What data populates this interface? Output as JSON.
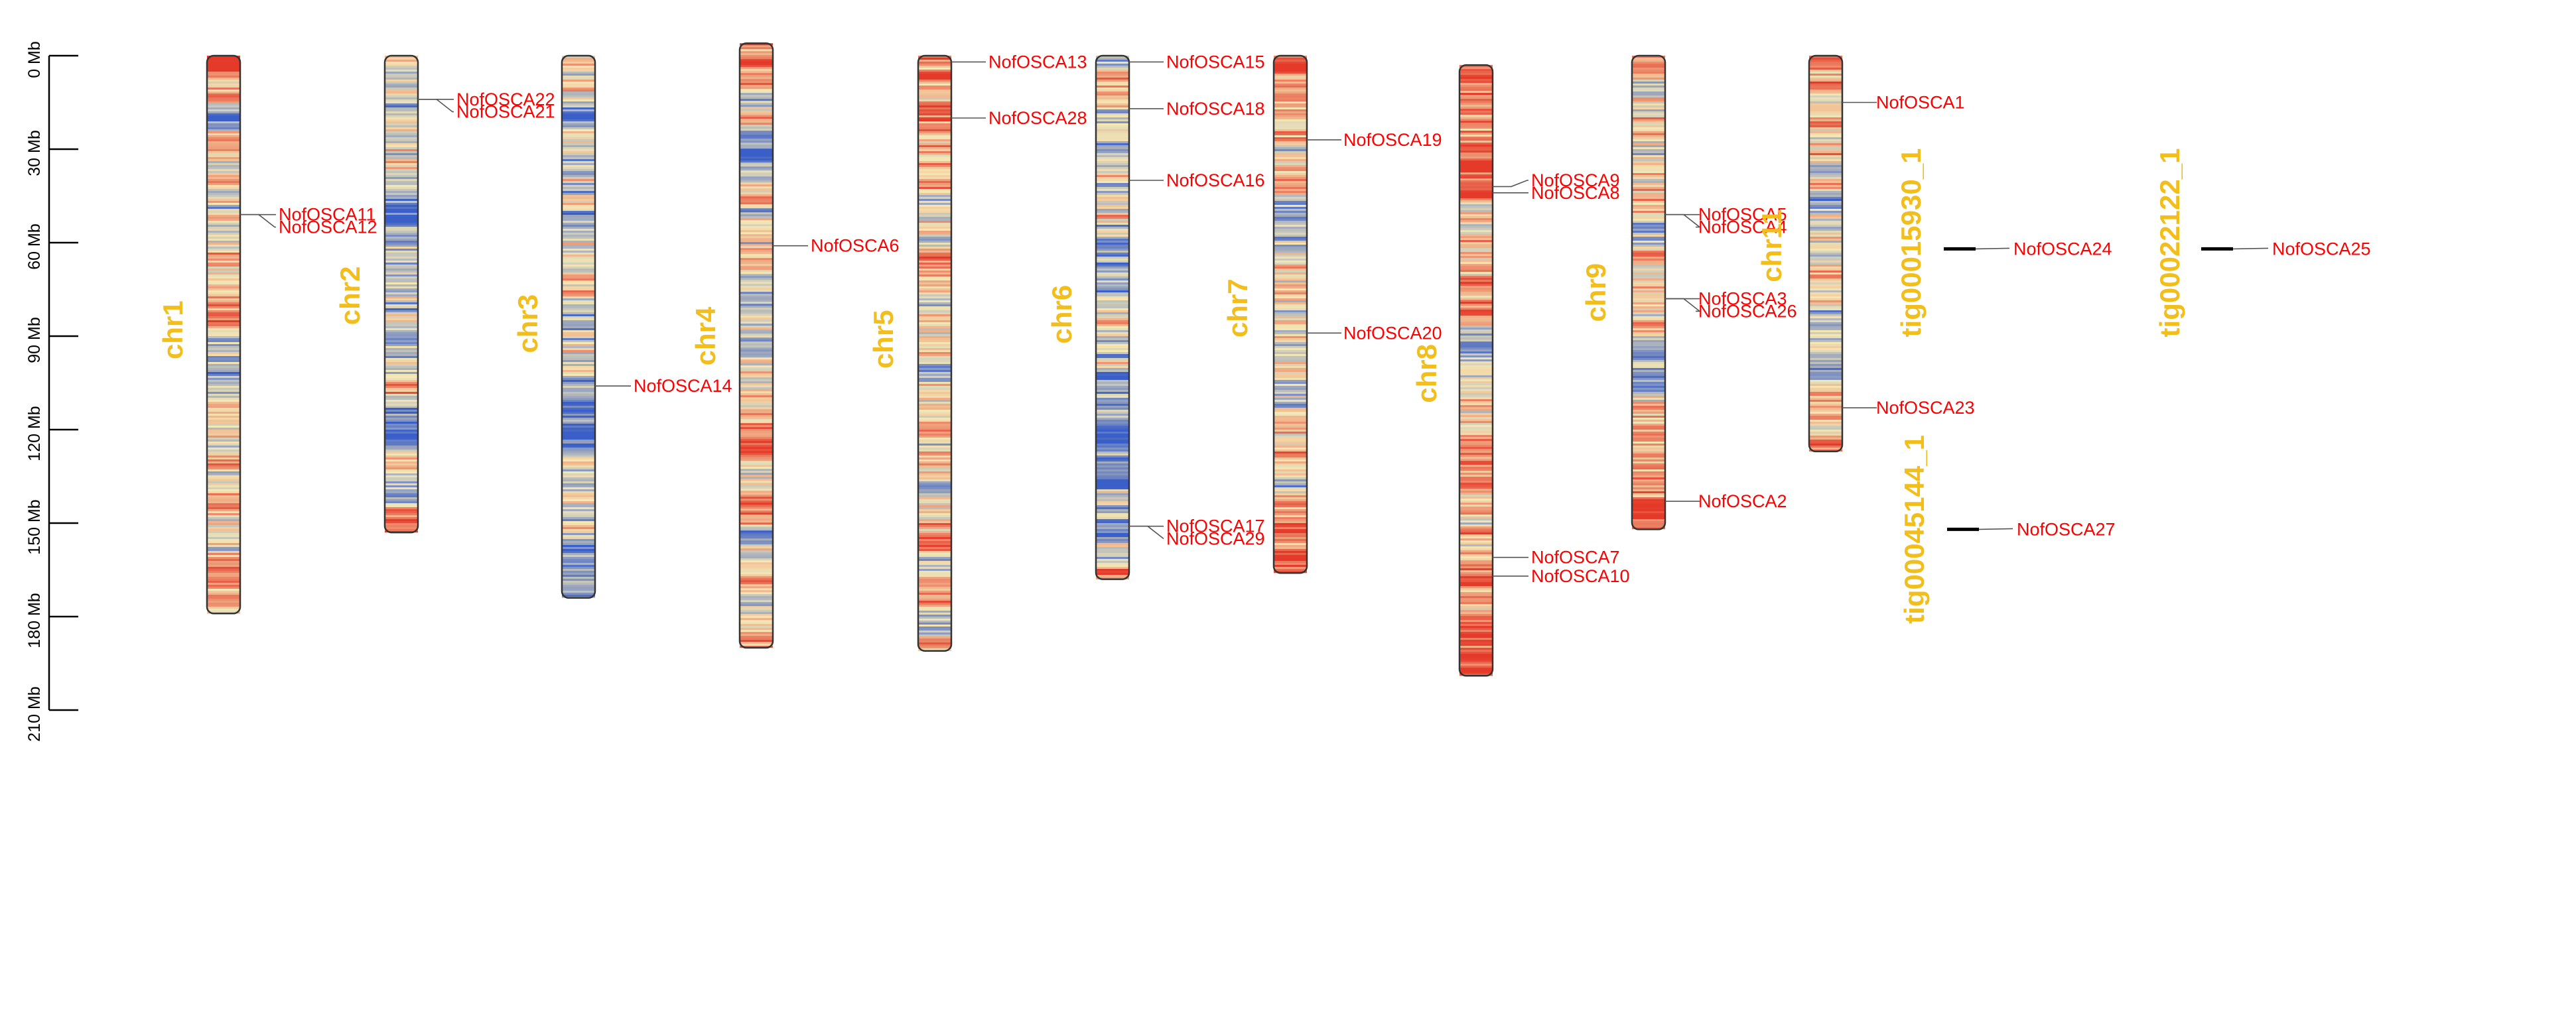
{
  "figure": {
    "units": "Mb",
    "axis": {
      "ticks": [
        {
          "value": 0,
          "label": "0 Mb"
        },
        {
          "value": 30,
          "label": "30 Mb"
        },
        {
          "value": 60,
          "label": "60 Mb"
        },
        {
          "value": 90,
          "label": "90 Mb"
        },
        {
          "value": 120,
          "label": "120 Mb"
        },
        {
          "value": 150,
          "label": "150 Mb"
        },
        {
          "value": 180,
          "label": "180 Mb"
        },
        {
          "value": 210,
          "label": "210 Mb"
        }
      ],
      "max": 210
    },
    "colors": {
      "gene_label": "#ff0000",
      "chromosome_label": "#f2be1c",
      "density_low": "#3a5fc8",
      "density_mid": "#f5e8b5",
      "density_high": "#e53a2a",
      "outline": "#333333",
      "scaffold": "#000000",
      "leader_line": "#555555"
    },
    "chromosomes": [
      {
        "name": "chr1",
        "start": 0,
        "length": 179,
        "density": "mixed",
        "genes": [
          {
            "name": "NofOSCA11",
            "pos": 51,
            "label_pos": 51
          },
          {
            "name": "NofOSCA12",
            "pos": 51,
            "label_pos": 55
          }
        ]
      },
      {
        "name": "chr2",
        "start": 0,
        "length": 153,
        "density": "blue",
        "genes": [
          {
            "name": "NofOSCA22",
            "pos": 14,
            "label_pos": 14
          },
          {
            "name": "NofOSCA21",
            "pos": 14,
            "label_pos": 18
          }
        ]
      },
      {
        "name": "chr3",
        "start": 0,
        "length": 174,
        "density": "blue",
        "genes": [
          {
            "name": "NofOSCA14",
            "pos": 106,
            "label_pos": 106
          }
        ]
      },
      {
        "name": "chr4",
        "start": -4,
        "length": 194,
        "density": "mixed",
        "genes": [
          {
            "name": "NofOSCA6",
            "pos": 61,
            "label_pos": 61
          }
        ]
      },
      {
        "name": "chr5",
        "start": 0,
        "length": 191,
        "density": "mixed",
        "genes": [
          {
            "name": "NofOSCA13",
            "pos": 2,
            "label_pos": 2
          },
          {
            "name": "NofOSCA28",
            "pos": 20,
            "label_pos": 20
          }
        ]
      },
      {
        "name": "chr6",
        "start": 0,
        "length": 168,
        "density": "blue",
        "genes": [
          {
            "name": "NofOSCA15",
            "pos": 2,
            "label_pos": 2
          },
          {
            "name": "NofOSCA18",
            "pos": 17,
            "label_pos": 17
          },
          {
            "name": "NofOSCA16",
            "pos": 40,
            "label_pos": 40
          },
          {
            "name": "NofOSCA17",
            "pos": 151,
            "label_pos": 151
          },
          {
            "name": "NofOSCA29",
            "pos": 151,
            "label_pos": 155
          }
        ]
      },
      {
        "name": "chr7",
        "start": 0,
        "length": 166,
        "density": "mixed",
        "genes": [
          {
            "name": "NofOSCA19",
            "pos": 27,
            "label_pos": 27
          },
          {
            "name": "NofOSCA20",
            "pos": 89,
            "label_pos": 89
          }
        ]
      },
      {
        "name": "chr8",
        "start": 3,
        "length": 196,
        "density": "red",
        "genes": [
          {
            "name": "NofOSCA9",
            "pos": 42,
            "label_pos": 40
          },
          {
            "name": "NofOSCA8",
            "pos": 44,
            "label_pos": 44
          },
          {
            "name": "NofOSCA7",
            "pos": 161,
            "label_pos": 161
          },
          {
            "name": "NofOSCA10",
            "pos": 167,
            "label_pos": 167
          }
        ]
      },
      {
        "name": "chr9",
        "start": 0,
        "length": 152,
        "density": "mixed",
        "genes": [
          {
            "name": "NofOSCA5",
            "pos": 51,
            "label_pos": 51
          },
          {
            "name": "NofOSCA4",
            "pos": 51,
            "label_pos": 55
          },
          {
            "name": "NofOSCA3",
            "pos": 78,
            "label_pos": 78
          },
          {
            "name": "NofOSCA26",
            "pos": 78,
            "label_pos": 82
          },
          {
            "name": "NofOSCA2",
            "pos": 143,
            "label_pos": 143
          }
        ]
      },
      {
        "name": "chr11",
        "start": 0,
        "length": 127,
        "density": "mixed",
        "genes": [
          {
            "name": "NofOSCA1",
            "pos": 15,
            "label_pos": 15
          },
          {
            "name": "NofOSCA23",
            "pos": 113,
            "label_pos": 113
          }
        ]
      }
    ],
    "scaffolds": [
      {
        "name": "tig00015930_1",
        "pos": 62,
        "genes": [
          {
            "name": "NofOSCA24",
            "pos": 62
          }
        ]
      },
      {
        "name": "tig00022122_1",
        "pos": 62,
        "genes": [
          {
            "name": "NofOSCA25",
            "pos": 62
          }
        ]
      },
      {
        "name": "tig00045144_1",
        "pos": 152,
        "genes": [
          {
            "name": "NofOSCA27",
            "pos": 152
          }
        ]
      }
    ]
  }
}
